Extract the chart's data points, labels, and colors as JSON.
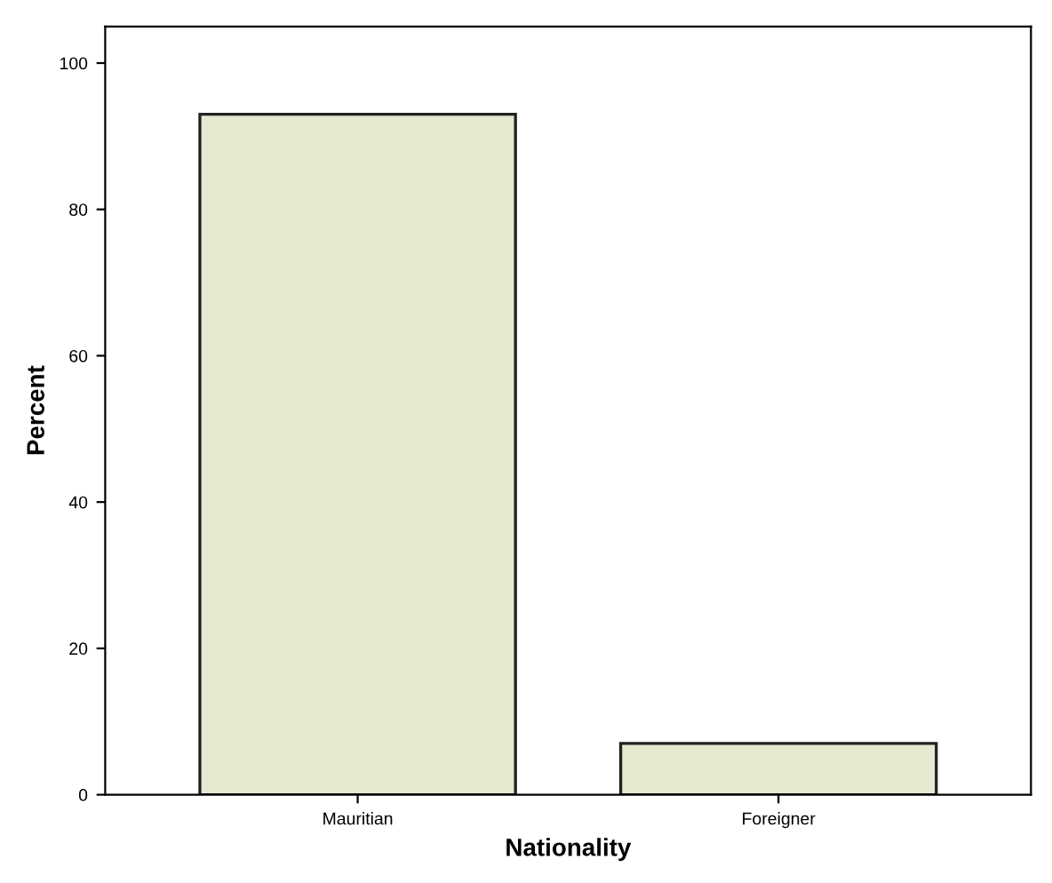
{
  "chart_data": {
    "type": "bar",
    "xlabel": "Nationality",
    "ylabel": "Percent",
    "categories": [
      "Mauritian",
      "Foreigner"
    ],
    "values": [
      93,
      7
    ],
    "color": "#e5e9cf",
    "ylim": [
      0,
      105
    ],
    "yticks": [
      0,
      20,
      40,
      60,
      80,
      100
    ],
    "grid": false
  }
}
